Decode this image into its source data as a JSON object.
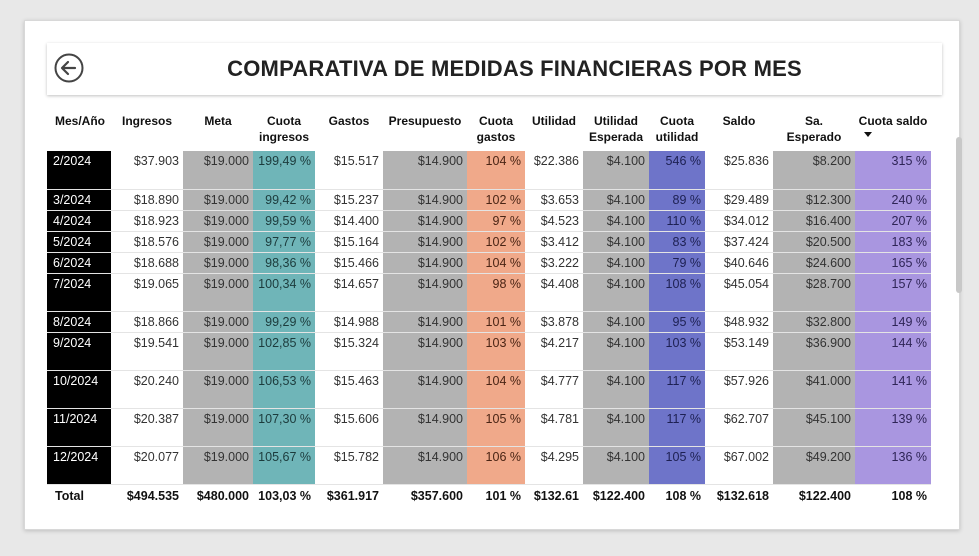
{
  "header": {
    "title": "COMPARATIVA DE MEDIDAS FINANCIERAS POR MES"
  },
  "icons": {
    "back": "back-arrow-circle-icon",
    "sort": "sort-descending-icon"
  },
  "colors": {
    "mes": "#000000",
    "gray": "#b3b3b3",
    "teal": "#6fb5b8",
    "salmon": "#f0a98a",
    "indigo": "#6e74c9",
    "purple": "#a996e0"
  },
  "table": {
    "columns": [
      "Mes/Año",
      "Ingresos",
      "Meta",
      "Cuota ingresos",
      "Gastos",
      "Presupuesto",
      "Cuota gastos",
      "Utilidad",
      "Utilidad Esperada",
      "Cuota utilidad",
      "Saldo",
      "Sa. Esperado",
      "Cuota saldo"
    ],
    "rows": [
      [
        "2/2024",
        "$37.903",
        "$19.000",
        "199,49 %",
        "$15.517",
        "$14.900",
        "104 %",
        "$22.386",
        "$4.100",
        "546 %",
        "$25.836",
        "$8.200",
        "315 %"
      ],
      [
        "3/2024",
        "$18.890",
        "$19.000",
        "99,42 %",
        "$15.237",
        "$14.900",
        "102 %",
        "$3.653",
        "$4.100",
        "89 %",
        "$29.489",
        "$12.300",
        "240 %"
      ],
      [
        "4/2024",
        "$18.923",
        "$19.000",
        "99,59 %",
        "$14.400",
        "$14.900",
        "97 %",
        "$4.523",
        "$4.100",
        "110 %",
        "$34.012",
        "$16.400",
        "207 %"
      ],
      [
        "5/2024",
        "$18.576",
        "$19.000",
        "97,77 %",
        "$15.164",
        "$14.900",
        "102 %",
        "$3.412",
        "$4.100",
        "83 %",
        "$37.424",
        "$20.500",
        "183 %"
      ],
      [
        "6/2024",
        "$18.688",
        "$19.000",
        "98,36 %",
        "$15.466",
        "$14.900",
        "104 %",
        "$3.222",
        "$4.100",
        "79 %",
        "$40.646",
        "$24.600",
        "165 %"
      ],
      [
        "7/2024",
        "$19.065",
        "$19.000",
        "100,34 %",
        "$14.657",
        "$14.900",
        "98 %",
        "$4.408",
        "$4.100",
        "108 %",
        "$45.054",
        "$28.700",
        "157 %"
      ],
      [
        "8/2024",
        "$18.866",
        "$19.000",
        "99,29 %",
        "$14.988",
        "$14.900",
        "101 %",
        "$3.878",
        "$4.100",
        "95 %",
        "$48.932",
        "$32.800",
        "149 %"
      ],
      [
        "9/2024",
        "$19.541",
        "$19.000",
        "102,85 %",
        "$15.324",
        "$14.900",
        "103 %",
        "$4.217",
        "$4.100",
        "103 %",
        "$53.149",
        "$36.900",
        "144 %"
      ],
      [
        "10/2024",
        "$20.240",
        "$19.000",
        "106,53 %",
        "$15.463",
        "$14.900",
        "104 %",
        "$4.777",
        "$4.100",
        "117 %",
        "$57.926",
        "$41.000",
        "141 %"
      ],
      [
        "11/2024",
        "$20.387",
        "$19.000",
        "107,30 %",
        "$15.606",
        "$14.900",
        "105 %",
        "$4.781",
        "$4.100",
        "117 %",
        "$62.707",
        "$45.100",
        "139 %"
      ],
      [
        "12/2024",
        "$20.077",
        "$19.000",
        "105,67 %",
        "$15.782",
        "$14.900",
        "106 %",
        "$4.295",
        "$4.100",
        "105 %",
        "$67.002",
        "$49.200",
        "136 %"
      ]
    ],
    "total": [
      "Total",
      "$494.535",
      "$480.000",
      "103,03 %",
      "$361.917",
      "$357.600",
      "101 %",
      "$132.618",
      "$122.400",
      "108 %",
      "$132.618",
      "$122.400",
      "108 %"
    ]
  }
}
